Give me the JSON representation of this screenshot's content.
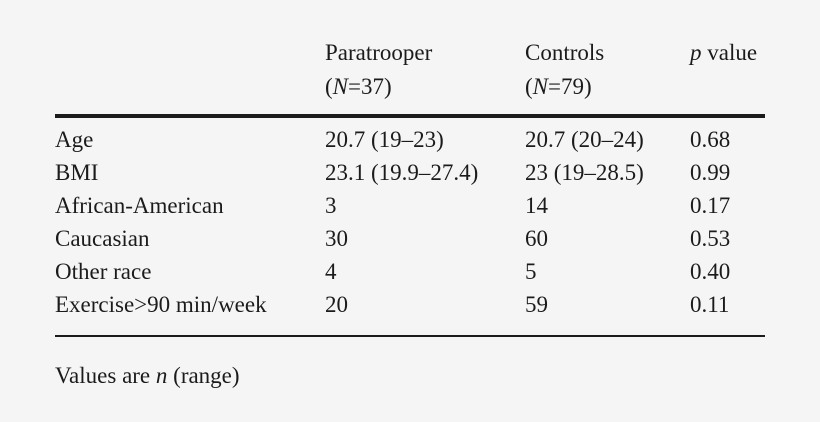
{
  "page": {
    "background": "#f5f5f6",
    "text_color": "#1b1b1b",
    "rule_color": "#1b1b1b"
  },
  "header": {
    "row_label_column": "",
    "paratrooper": {
      "line1": "Paratrooper",
      "paren_open": "(",
      "n_symbol": "N",
      "paren_rest": "=37)"
    },
    "controls": {
      "line1": "Controls",
      "paren_open": "(",
      "n_symbol": "N",
      "paren_rest": "=79)"
    },
    "p_value": {
      "symbol": "p",
      "rest": " value"
    }
  },
  "rows": [
    {
      "label": "Age",
      "paratrooper": "20.7 (19–23)",
      "controls": "20.7 (20–24)",
      "p": "0.68"
    },
    {
      "label": "BMI",
      "paratrooper": "23.1 (19.9–27.4)",
      "controls": "23 (19–28.5)",
      "p": "0.99"
    },
    {
      "label": "African-American",
      "paratrooper": "3",
      "controls": "14",
      "p": "0.17"
    },
    {
      "label": "Caucasian",
      "paratrooper": "30",
      "controls": "60",
      "p": "0.53"
    },
    {
      "label": "Other race",
      "paratrooper": "4",
      "controls": "5",
      "p": "0.40"
    },
    {
      "label": "Exercise>90 min/week",
      "paratrooper": "20",
      "controls": "59",
      "p": "0.11"
    }
  ],
  "footnote": {
    "pre": "Values are ",
    "n_symbol": "n",
    "post": " (range)"
  }
}
